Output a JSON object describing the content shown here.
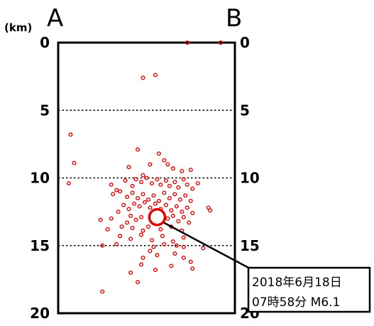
{
  "chart_data": {
    "type": "scatter",
    "unit_label": "(km)",
    "left_end_label": "A",
    "right_end_label": "B",
    "ylim": [
      0,
      20
    ],
    "y_inverted": true,
    "y_ticks": [
      0,
      5,
      10,
      15,
      20
    ],
    "y_tick_labels": [
      "0",
      "5",
      "10",
      "15",
      "20"
    ],
    "xlim": [
      0,
      1
    ],
    "grid": "dotted horizontal lines at 5, 10, 15",
    "colors": {
      "points": "#e60000",
      "axes": "#000000",
      "grid": "#000000"
    },
    "mainshock": {
      "x": 0.56,
      "y": 12.9,
      "label_line1": "2018年6月18日",
      "label_line2": "07時58分  M6.1"
    },
    "points": [
      [
        0.73,
        0.0
      ],
      [
        0.92,
        0.0
      ],
      [
        0.55,
        2.4
      ],
      [
        0.48,
        2.6
      ],
      [
        0.07,
        6.8
      ],
      [
        0.09,
        8.9
      ],
      [
        0.45,
        7.9
      ],
      [
        0.57,
        8.2
      ],
      [
        0.6,
        8.7
      ],
      [
        0.62,
        9.0
      ],
      [
        0.4,
        9.2
      ],
      [
        0.52,
        9.0
      ],
      [
        0.65,
        9.3
      ],
      [
        0.7,
        9.5
      ],
      [
        0.75,
        9.4
      ],
      [
        0.06,
        10.4
      ],
      [
        0.3,
        10.5
      ],
      [
        0.33,
        10.9
      ],
      [
        0.38,
        10.2
      ],
      [
        0.42,
        10.6
      ],
      [
        0.44,
        10.1
      ],
      [
        0.47,
        10.3
      ],
      [
        0.5,
        10.0
      ],
      [
        0.53,
        10.4
      ],
      [
        0.56,
        10.1
      ],
      [
        0.58,
        10.5
      ],
      [
        0.61,
        10.2
      ],
      [
        0.63,
        10.6
      ],
      [
        0.66,
        10.3
      ],
      [
        0.68,
        10.7
      ],
      [
        0.71,
        10.1
      ],
      [
        0.73,
        10.5
      ],
      [
        0.76,
        10.8
      ],
      [
        0.79,
        10.4
      ],
      [
        0.48,
        9.8
      ],
      [
        0.31,
        11.2
      ],
      [
        0.35,
        11.0
      ],
      [
        0.39,
        11.4
      ],
      [
        0.42,
        11.1
      ],
      [
        0.45,
        11.5
      ],
      [
        0.48,
        11.2
      ],
      [
        0.51,
        11.6
      ],
      [
        0.54,
        11.3
      ],
      [
        0.57,
        11.7
      ],
      [
        0.6,
        11.1
      ],
      [
        0.63,
        11.5
      ],
      [
        0.66,
        11.2
      ],
      [
        0.69,
        11.6
      ],
      [
        0.72,
        11.3
      ],
      [
        0.75,
        11.7
      ],
      [
        0.43,
        11.9
      ],
      [
        0.46,
        12.1
      ],
      [
        0.49,
        11.8
      ],
      [
        0.52,
        12.2
      ],
      [
        0.55,
        11.9
      ],
      [
        0.58,
        12.3
      ],
      [
        0.61,
        12.0
      ],
      [
        0.64,
        12.4
      ],
      [
        0.67,
        12.1
      ],
      [
        0.7,
        12.5
      ],
      [
        0.73,
        12.2
      ],
      [
        0.76,
        12.6
      ],
      [
        0.4,
        12.3
      ],
      [
        0.37,
        12.0
      ],
      [
        0.34,
        12.5
      ],
      [
        0.41,
        12.8
      ],
      [
        0.44,
        13.1
      ],
      [
        0.47,
        12.9
      ],
      [
        0.62,
        13.0
      ],
      [
        0.65,
        12.8
      ],
      [
        0.68,
        13.2
      ],
      [
        0.71,
        12.9
      ],
      [
        0.74,
        13.3
      ],
      [
        0.39,
        13.3
      ],
      [
        0.3,
        13.0
      ],
      [
        0.28,
        13.8
      ],
      [
        0.36,
        13.6
      ],
      [
        0.42,
        13.7
      ],
      [
        0.48,
        13.9
      ],
      [
        0.51,
        13.6
      ],
      [
        0.58,
        13.8
      ],
      [
        0.64,
        13.6
      ],
      [
        0.7,
        13.9
      ],
      [
        0.24,
        13.1
      ],
      [
        0.85,
        12.2
      ],
      [
        0.86,
        12.4
      ],
      [
        0.35,
        14.3
      ],
      [
        0.41,
        14.5
      ],
      [
        0.47,
        14.2
      ],
      [
        0.53,
        14.6
      ],
      [
        0.59,
        14.3
      ],
      [
        0.65,
        14.7
      ],
      [
        0.71,
        14.4
      ],
      [
        0.33,
        14.9
      ],
      [
        0.6,
        14.9
      ],
      [
        0.67,
        15.0
      ],
      [
        0.82,
        15.2
      ],
      [
        0.71,
        15.1
      ],
      [
        0.54,
        15.1
      ],
      [
        0.25,
        15.0
      ],
      [
        0.52,
        15.4
      ],
      [
        0.56,
        15.7
      ],
      [
        0.48,
        15.9
      ],
      [
        0.66,
        15.6
      ],
      [
        0.71,
        15.9
      ],
      [
        0.75,
        16.2
      ],
      [
        0.64,
        16.5
      ],
      [
        0.55,
        16.8
      ],
      [
        0.47,
        16.4
      ],
      [
        0.76,
        16.7
      ],
      [
        0.41,
        17.0
      ],
      [
        0.45,
        17.7
      ],
      [
        0.25,
        18.4
      ]
    ]
  }
}
